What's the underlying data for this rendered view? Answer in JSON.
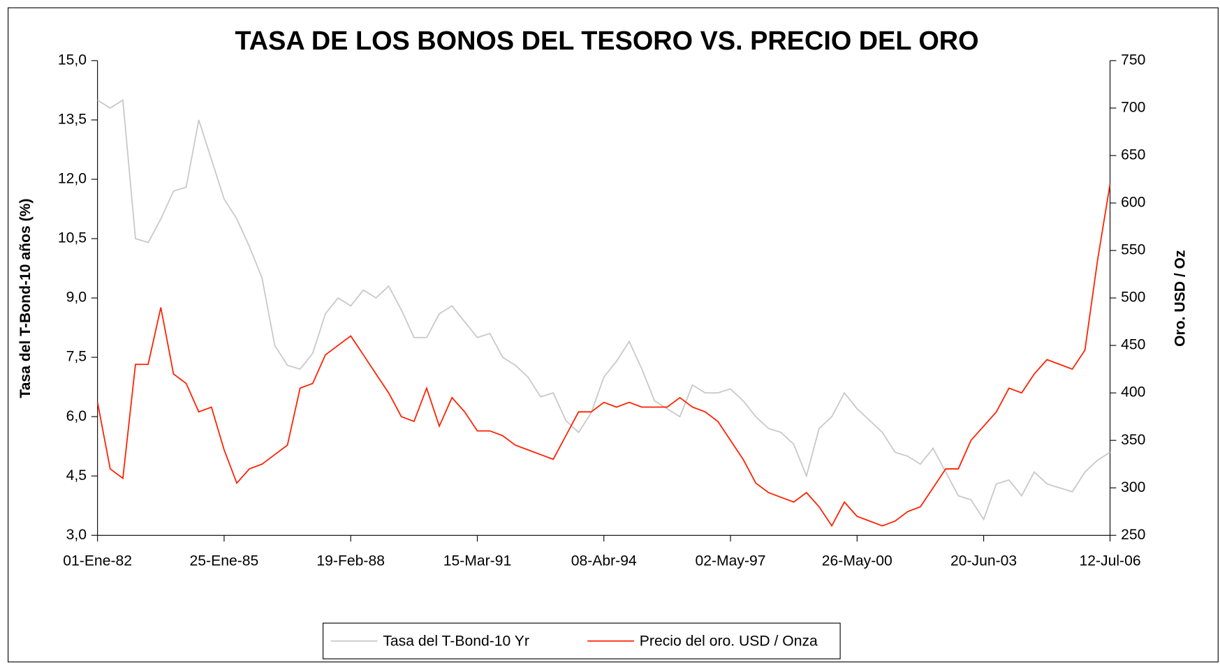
{
  "chart_data": {
    "type": "line",
    "title": "TASA DE LOS BONOS DEL TESORO VS. PRECIO DEL ORO",
    "ylabel": "Tasa del T-Bond-10 años (%)",
    "y2label": "Oro. USD / Oz",
    "x": [
      29952,
      30064,
      30176,
      30288,
      30400,
      30512,
      30624,
      30736,
      30848,
      30960,
      31072,
      31184,
      31296,
      31408,
      31520,
      31632,
      31744,
      31856,
      31968,
      32080,
      32192,
      32304,
      32416,
      32528,
      32640,
      32752,
      32864,
      32976,
      33088,
      33200,
      33312,
      33424,
      33536,
      33648,
      33760,
      33872,
      33984,
      34096,
      34208,
      34320,
      34432,
      34544,
      34656,
      34768,
      34880,
      34992,
      35104,
      35216,
      35328,
      35440,
      35552,
      35664,
      35776,
      35888,
      36000,
      36112,
      36224,
      36336,
      36448,
      36560,
      36672,
      36784,
      36896,
      37008,
      37120,
      37232,
      37344,
      37456,
      37568,
      37680,
      37792,
      37904,
      38016,
      38128,
      38240,
      38352,
      38464,
      38576,
      38688,
      38800,
      38910
    ],
    "series": [
      {
        "name": "Tasa del T-Bond-10 Yr",
        "color": "#c8c8c8",
        "values": [
          14.0,
          13.8,
          14.0,
          10.5,
          10.4,
          11.0,
          11.7,
          11.8,
          13.5,
          12.5,
          11.5,
          11.0,
          10.3,
          9.5,
          7.8,
          7.3,
          7.2,
          7.6,
          8.6,
          9.0,
          8.8,
          9.2,
          9.0,
          9.3,
          8.7,
          8.0,
          8.0,
          8.6,
          8.8,
          8.4,
          8.0,
          8.1,
          7.5,
          7.3,
          7.0,
          6.5,
          6.6,
          5.9,
          5.6,
          6.1,
          7.0,
          7.4,
          7.9,
          7.2,
          6.4,
          6.2,
          6.0,
          6.8,
          6.6,
          6.6,
          6.7,
          6.4,
          6.0,
          5.7,
          5.6,
          5.3,
          4.5,
          5.7,
          6.0,
          6.6,
          6.2,
          5.9,
          5.6,
          5.1,
          5.0,
          4.8,
          5.2,
          4.6,
          4.0,
          3.9,
          3.4,
          4.3,
          4.4,
          4.0,
          4.6,
          4.3,
          4.2,
          4.1,
          4.6,
          4.9,
          5.1
        ]
      },
      {
        "name": "Precio del oro. USD / Onza",
        "color": "#ff2000",
        "axis": "y2",
        "values": [
          390,
          320,
          310,
          430,
          430,
          490,
          420,
          410,
          380,
          385,
          340,
          305,
          320,
          325,
          335,
          345,
          405,
          410,
          440,
          450,
          460,
          440,
          420,
          400,
          375,
          370,
          405,
          365,
          395,
          380,
          360,
          360,
          355,
          345,
          340,
          335,
          330,
          355,
          380,
          380,
          390,
          385,
          390,
          385,
          385,
          385,
          395,
          385,
          380,
          370,
          350,
          330,
          305,
          295,
          290,
          285,
          295,
          280,
          260,
          285,
          270,
          265,
          260,
          265,
          275,
          280,
          300,
          320,
          320,
          350,
          365,
          380,
          405,
          400,
          420,
          435,
          430,
          425,
          445,
          540,
          620
        ]
      }
    ],
    "xlim": [
      29952,
      38910
    ],
    "xticks": [
      {
        "value": 29952,
        "label": "01-Ene-82"
      },
      {
        "value": 31072,
        "label": "25-Ene-85"
      },
      {
        "value": 32192,
        "label": "19-Feb-88"
      },
      {
        "value": 33312,
        "label": "15-Mar-91"
      },
      {
        "value": 34432,
        "label": "08-Abr-94"
      },
      {
        "value": 35552,
        "label": "02-May-97"
      },
      {
        "value": 36672,
        "label": "26-May-00"
      },
      {
        "value": 37792,
        "label": "20-Jun-03"
      },
      {
        "value": 38910,
        "label": "12-Jul-06"
      }
    ],
    "ylim": [
      3,
      15
    ],
    "yticks": [
      {
        "value": 3,
        "label": "3,0"
      },
      {
        "value": 4.5,
        "label": "4,5"
      },
      {
        "value": 6,
        "label": "6,0"
      },
      {
        "value": 7.5,
        "label": "7,5"
      },
      {
        "value": 9,
        "label": "9,0"
      },
      {
        "value": 10.5,
        "label": "10,5"
      },
      {
        "value": 12,
        "label": "12,0"
      },
      {
        "value": 13.5,
        "label": "13,5"
      },
      {
        "value": 15,
        "label": "15,0"
      }
    ],
    "y2lim": [
      250,
      750
    ],
    "y2ticks": [
      250,
      300,
      350,
      400,
      450,
      500,
      550,
      600,
      650,
      700,
      750
    ],
    "legend": "bottom"
  }
}
